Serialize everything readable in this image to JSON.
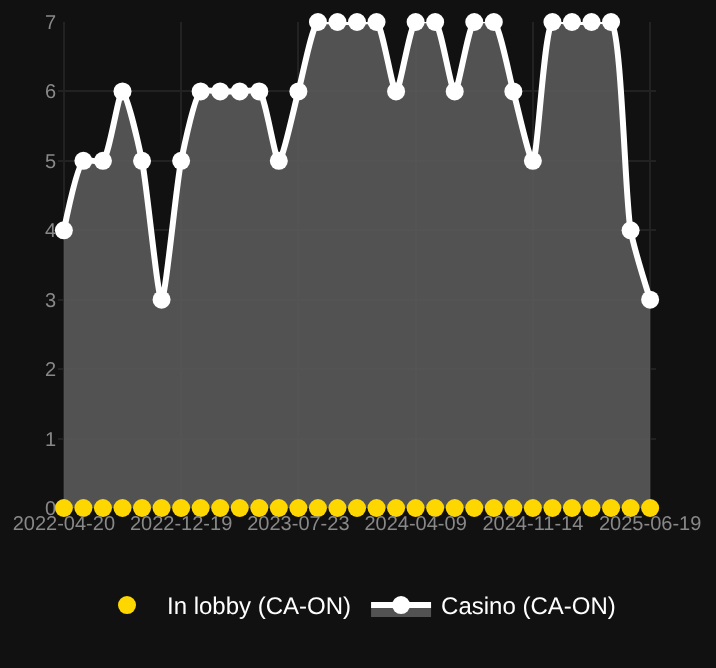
{
  "chart_data": {
    "type": "area",
    "categories": [
      "2022-04-20",
      null,
      null,
      null,
      null,
      null,
      "2022-12-19",
      null,
      null,
      null,
      null,
      null,
      "2023-07-23",
      null,
      null,
      null,
      null,
      null,
      "2024-04-09",
      null,
      null,
      null,
      null,
      null,
      "2024-11-14",
      null,
      null,
      null,
      null,
      null,
      "2025-06-19"
    ],
    "series": [
      {
        "name": "In lobby (CA-ON)",
        "type": "scatter",
        "color": "#ffd700",
        "values": [
          0,
          0,
          0,
          0,
          0,
          0,
          0,
          0,
          0,
          0,
          0,
          0,
          0,
          0,
          0,
          0,
          0,
          0,
          0,
          0,
          0,
          0,
          0,
          0,
          0,
          0,
          0,
          0,
          0,
          0,
          0
        ]
      },
      {
        "name": "Casino (CA-ON)",
        "color": "#ffffff",
        "values": [
          4,
          5,
          5,
          6,
          5,
          3,
          5,
          6,
          6,
          6,
          6,
          5,
          6,
          7,
          7,
          7,
          7,
          6,
          7,
          7,
          6,
          7,
          7,
          6,
          5,
          7,
          7,
          7,
          7,
          4,
          3
        ]
      }
    ],
    "ylim": [
      0,
      7
    ],
    "yticks": [
      0,
      1,
      2,
      3,
      4,
      5,
      6,
      7
    ],
    "grid": true,
    "legend": "bottom",
    "marker": "circle",
    "line_style": "solid"
  }
}
